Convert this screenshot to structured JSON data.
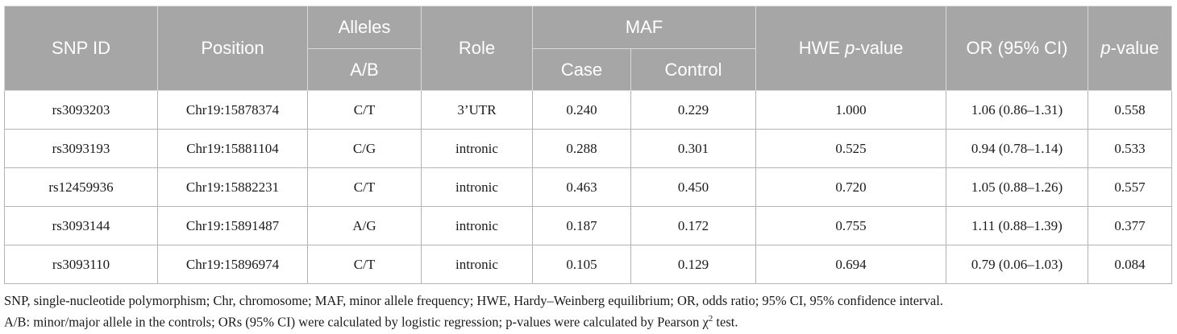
{
  "headers": {
    "snp_id": "SNP ID",
    "position": "Position",
    "alleles": "Alleles",
    "alleles_sub": "A/B",
    "role": "Role",
    "maf": "MAF",
    "maf_case": "Case",
    "maf_control": "Control",
    "hwe_prefix": "HWE ",
    "hwe_italic": "p",
    "hwe_suffix": "-value",
    "or": "OR (95% CI)",
    "p_italic": "p",
    "p_suffix": "-value"
  },
  "rows": [
    {
      "snp": "rs3093203",
      "position": "Chr19:15878374",
      "alleles": "C/T",
      "role": "3’UTR",
      "case": "0.240",
      "control": "0.229",
      "hwe": "1.000",
      "or": "1.06 (0.86–1.31)",
      "p": "0.558"
    },
    {
      "snp": "rs3093193",
      "position": "Chr19:15881104",
      "alleles": "C/G",
      "role": "intronic",
      "case": "0.288",
      "control": "0.301",
      "hwe": "0.525",
      "or": "0.94 (0.78–1.14)",
      "p": "0.533"
    },
    {
      "snp": "rs12459936",
      "position": "Chr19:15882231",
      "alleles": "C/T",
      "role": "intronic",
      "case": "0.463",
      "control": "0.450",
      "hwe": "0.720",
      "or": "1.05 (0.88–1.26)",
      "p": "0.557"
    },
    {
      "snp": "rs3093144",
      "position": "Chr19:15891487",
      "alleles": "A/G",
      "role": "intronic",
      "case": "0.187",
      "control": "0.172",
      "hwe": "0.755",
      "or": "1.11 (0.88–1.39)",
      "p": "0.377"
    },
    {
      "snp": "rs3093110",
      "position": "Chr19:15896974",
      "alleles": "C/T",
      "role": "intronic",
      "case": "0.105",
      "control": "0.129",
      "hwe": "0.694",
      "or": "0.79 (0.06–1.03)",
      "p": "0.084"
    }
  ],
  "footnotes": {
    "line1": "SNP, single-nucleotide polymorphism; Chr, chromosome; MAF, minor allele frequency; HWE, Hardy–Weinberg equilibrium; OR, odds ratio; 95% CI, 95% confidence interval.",
    "line2_before": "A/B: minor/major allele in the controls; ORs (95% CI) were calculated by logistic regression; p-values were calculated by Pearson χ",
    "line2_sup": "2",
    "line2_after": " test."
  }
}
